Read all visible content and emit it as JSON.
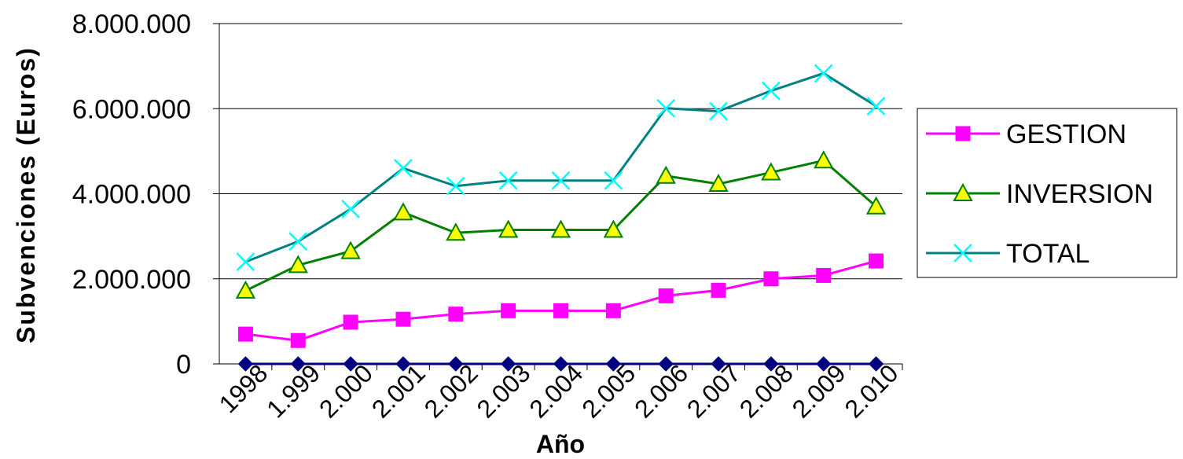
{
  "chart_data": {
    "type": "line",
    "title": "",
    "xlabel": "Año",
    "ylabel": "Subvenciones (Euros)",
    "ylim": [
      0,
      8000000
    ],
    "yticks": [
      0,
      2000000,
      4000000,
      6000000,
      8000000
    ],
    "ytick_labels": [
      "0",
      "2.000.000",
      "4.000.000",
      "6.000.000",
      "8.000.000"
    ],
    "categories": [
      "1998",
      "1.999",
      "2.000",
      "2.001",
      "2.002",
      "2.003",
      "2.004",
      "2.005",
      "2.006",
      "2.007",
      "2.008",
      "2.009",
      "2.010"
    ],
    "grid": true,
    "legend_position": "right",
    "series": [
      {
        "name": "",
        "color": "#000080",
        "marker": "diamond",
        "values": [
          0,
          0,
          0,
          0,
          0,
          0,
          0,
          0,
          0,
          0,
          0,
          0,
          0
        ],
        "in_legend": false
      },
      {
        "name": "GESTION",
        "color": "#FF00FF",
        "marker": "square",
        "values": [
          700000,
          550000,
          980000,
          1050000,
          1170000,
          1250000,
          1250000,
          1250000,
          1600000,
          1730000,
          2000000,
          2080000,
          2420000
        ],
        "in_legend": true
      },
      {
        "name": "INVERSION",
        "color": "#008000",
        "marker_fill": "#FFFF00",
        "marker": "triangle",
        "values": [
          1720000,
          2320000,
          2650000,
          3560000,
          3080000,
          3150000,
          3150000,
          3150000,
          4420000,
          4230000,
          4500000,
          4780000,
          3700000
        ],
        "in_legend": true
      },
      {
        "name": "TOTAL",
        "color": "#008080",
        "marker_color": "#00FFFF",
        "marker": "x",
        "values": [
          2400000,
          2880000,
          3640000,
          4600000,
          4180000,
          4310000,
          4310000,
          4310000,
          6010000,
          5940000,
          6420000,
          6830000,
          6060000
        ],
        "in_legend": true
      }
    ]
  }
}
